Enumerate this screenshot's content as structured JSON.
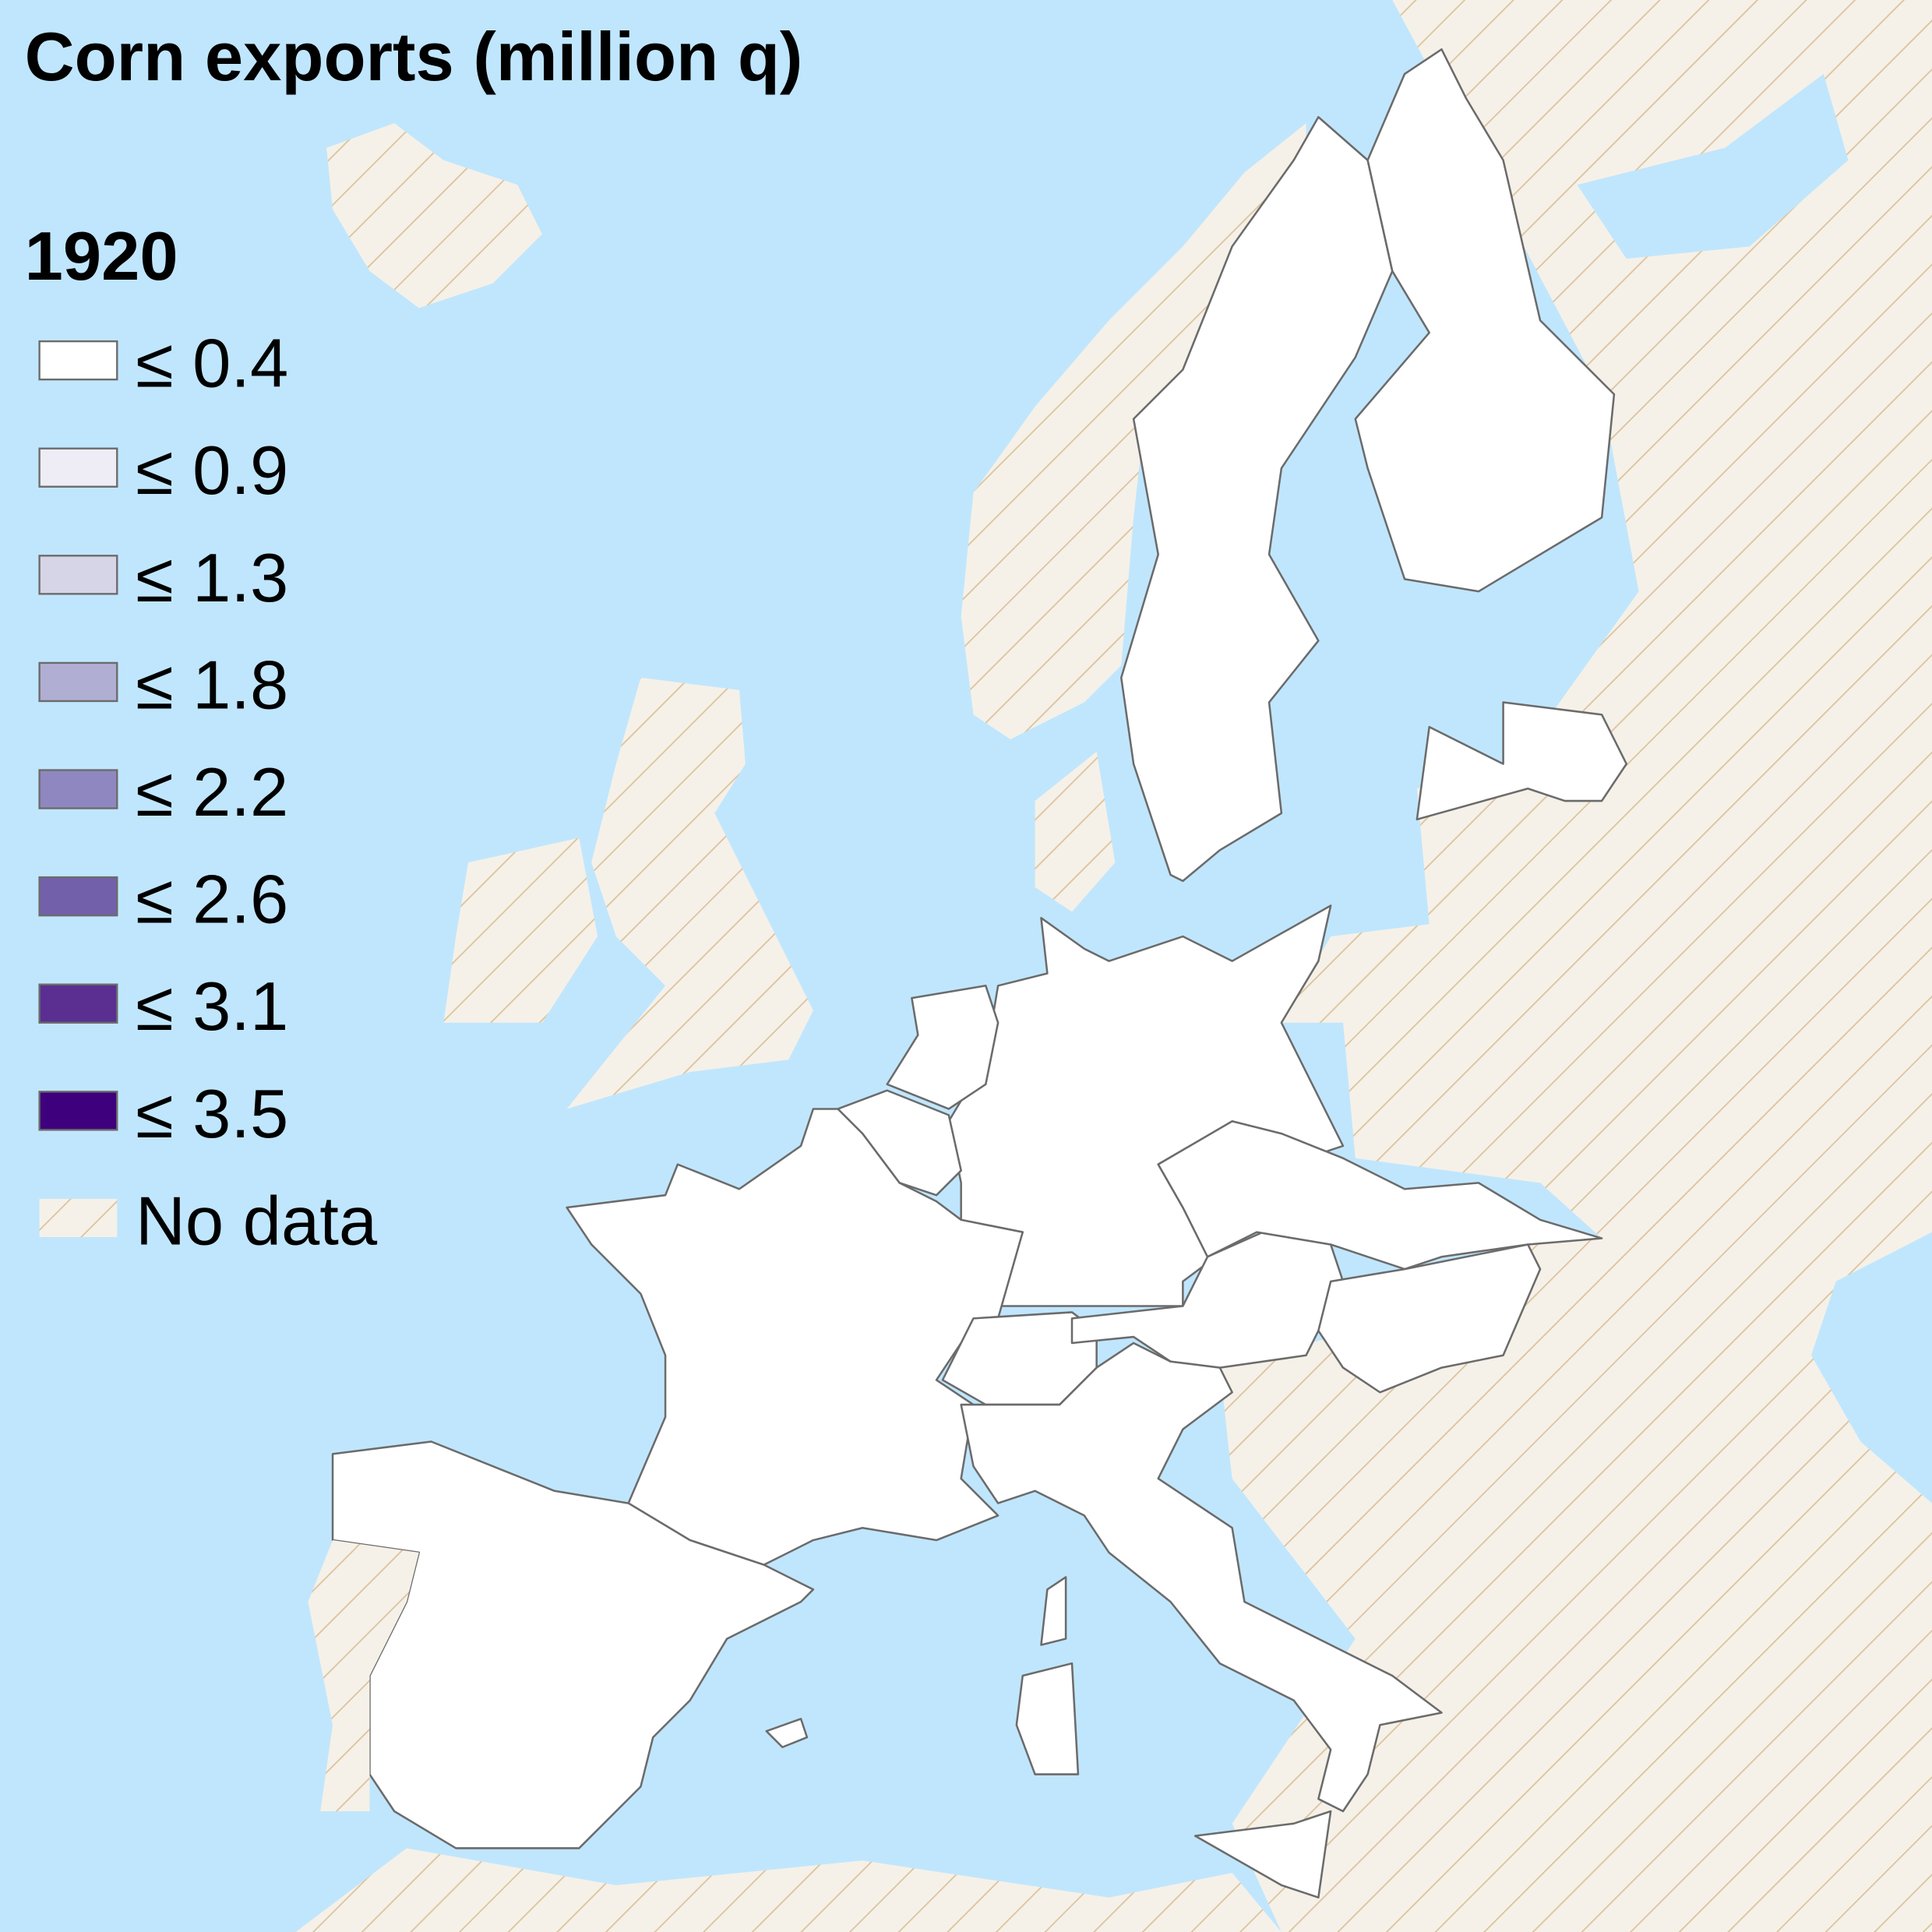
{
  "title": "Corn exports (million q)",
  "legend": {
    "title": "1920",
    "items": [
      {
        "label": "≤ 0.4",
        "color": "#ffffff"
      },
      {
        "label": "≤ 0.9",
        "color": "#eeecf5"
      },
      {
        "label": "≤ 1.3",
        "color": "#d6d5e8"
      },
      {
        "label": "≤ 1.8",
        "color": "#b1aed3"
      },
      {
        "label": "≤ 2.2",
        "color": "#8f88c0"
      },
      {
        "label": "≤ 2.6",
        "color": "#7360ab"
      },
      {
        "label": "≤ 3.1",
        "color": "#5a2f91"
      },
      {
        "label": "≤ 3.5",
        "color": "#3f007d"
      },
      {
        "label": "No data"
      }
    ]
  }
}
